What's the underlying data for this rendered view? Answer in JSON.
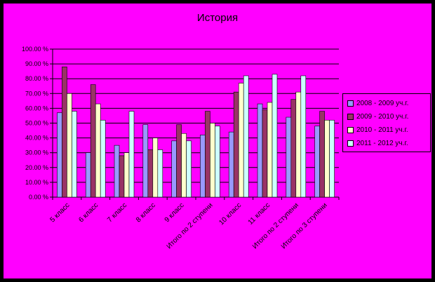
{
  "chart_data": {
    "type": "bar",
    "title": "История",
    "xlabel": "",
    "ylabel": "",
    "ylim": [
      0,
      100
    ],
    "yticks": [
      "0.00 %",
      "10.00 %",
      "20.00 %",
      "30.00 %",
      "40.00 %",
      "50.00 %",
      "60.00 %",
      "70.00 %",
      "80.00 %",
      "90.00 %",
      "100.00 %"
    ],
    "categories": [
      "5 класс",
      "6 класс",
      "7 класс",
      "8 класс",
      "9 класс",
      "Итого по 2 ступени",
      "10 класс",
      "11 класс",
      "Итого по 2 ступени",
      "Итого по 3 ступени"
    ],
    "series": [
      {
        "name": "2008 - 2009 уч.г.",
        "color": "#9999ff",
        "values": [
          57,
          30,
          35,
          49,
          38,
          42,
          44,
          63,
          54,
          48
        ]
      },
      {
        "name": "2009 - 2010 уч.г.",
        "color": "#993366",
        "values": [
          88,
          76,
          28,
          32,
          49,
          58,
          71,
          59,
          66,
          58
        ]
      },
      {
        "name": "2010 - 2011 уч.г.",
        "color": "#ffffcc",
        "values": [
          70,
          63,
          30,
          40,
          43,
          50,
          77,
          64,
          71,
          52
        ]
      },
      {
        "name": "2011 - 2012 уч.г.",
        "color": "#ccffff",
        "values": [
          58,
          52,
          58,
          32,
          38,
          48,
          82,
          83,
          82,
          52
        ]
      }
    ],
    "legend_position": "right",
    "grid": true
  }
}
